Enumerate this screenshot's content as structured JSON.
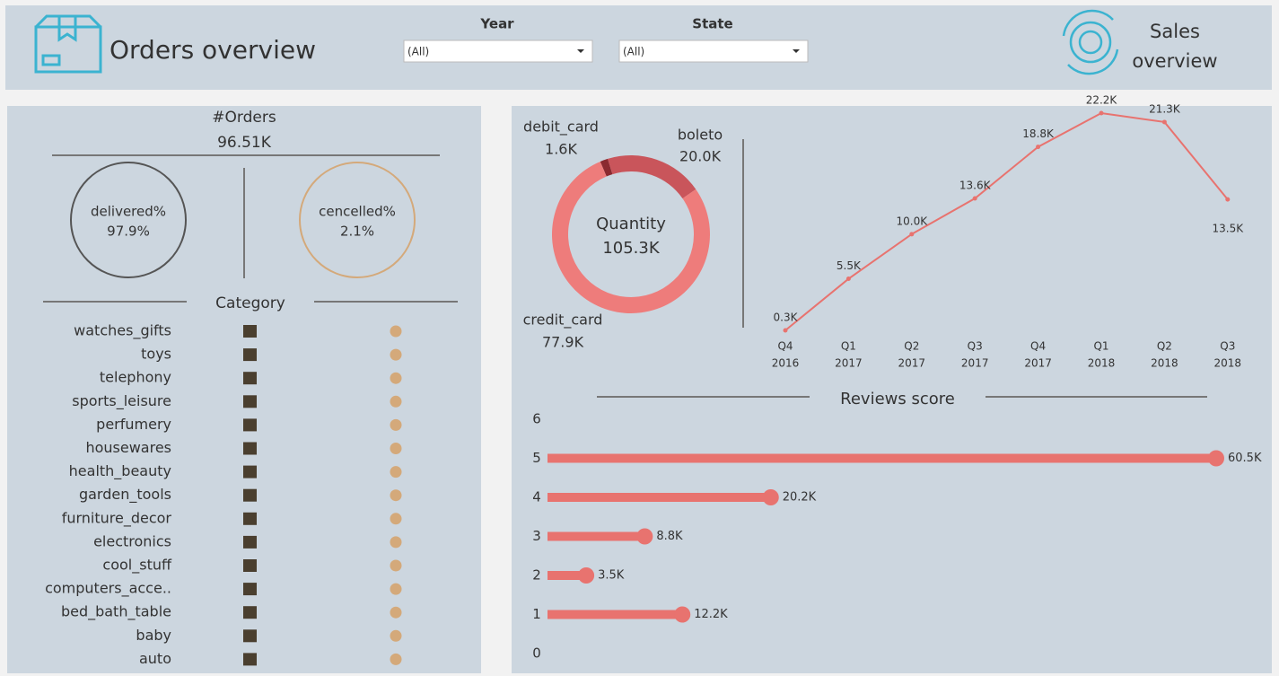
{
  "header": {
    "title": "Orders overview",
    "filters": [
      {
        "label": "Year",
        "value": "(All)"
      },
      {
        "label": "State",
        "value": "(All)"
      }
    ],
    "sales_button": [
      "Sales",
      "overview"
    ]
  },
  "orders": {
    "title": "#Orders",
    "value": "96.51K",
    "delivered": {
      "label": "delivered%",
      "value": "97.9%"
    },
    "cancelled": {
      "label": "cencelled%",
      "value": "2.1%"
    }
  },
  "category": {
    "title": "Category",
    "items": [
      "watches_gifts",
      "toys",
      "telephony",
      "sports_leisure",
      "perfumery",
      "housewares",
      "health_beauty",
      "garden_tools",
      "furniture_decor",
      "electronics",
      "cool_stuff",
      "computers_acce..",
      "bed_bath_table",
      "baby",
      "auto"
    ]
  },
  "payments": {
    "center_title": "Quantity",
    "center_value": "105.3K",
    "segments": [
      {
        "name": "debit_card",
        "value": 1.6,
        "value_label": "1.6K",
        "color": "#8b2a30"
      },
      {
        "name": "boleto",
        "value": 20.0,
        "value_label": "20.0K",
        "color": "#c9555b"
      },
      {
        "name": "credit_card",
        "value": 77.9,
        "value_label": "77.9K",
        "color": "#ee7c7b"
      }
    ]
  },
  "quarterly": {
    "quarters": [
      "Q4",
      "Q1",
      "Q2",
      "Q3",
      "Q4",
      "Q1",
      "Q2",
      "Q3"
    ],
    "years": [
      "2016",
      "2017",
      "2017",
      "2017",
      "2017",
      "2018",
      "2018",
      "2018"
    ],
    "values": [
      0.3,
      5.5,
      10.0,
      13.6,
      18.8,
      22.2,
      21.3,
      13.5
    ],
    "value_labels": [
      "0.3K",
      "5.5K",
      "10.0K",
      "13.6K",
      "18.8K",
      "22.2K",
      "21.3K",
      "13.5K"
    ],
    "color": "#e8736f"
  },
  "reviews": {
    "title": "Reviews score",
    "ylim": [
      0,
      6
    ],
    "yticks": [
      0,
      1,
      2,
      3,
      4,
      5,
      6
    ],
    "scores": [
      5,
      4,
      3,
      2,
      1
    ],
    "values": [
      60.5,
      20.2,
      8.8,
      3.5,
      12.2
    ],
    "value_labels": [
      "60.5K",
      "20.2K",
      "8.8K",
      "3.5K",
      "12.2K"
    ],
    "color": "#e8736f"
  }
}
